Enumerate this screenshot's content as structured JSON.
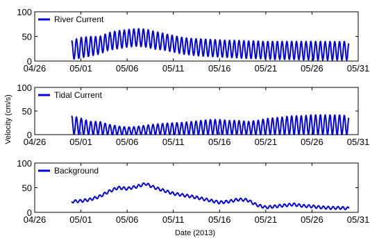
{
  "figure": {
    "ylabel": "Velocity (cm/s)",
    "xlabel": "Date (2013)",
    "line_color": "#0000e0"
  },
  "chart_data": [
    {
      "type": "line",
      "legend": "River Current",
      "legend_placement": "top-left",
      "grid": false,
      "xlim": [
        "2013-04-26",
        "2013-05-31"
      ],
      "ylim": [
        0,
        100
      ],
      "x_ticks": [
        "04/26",
        "05/01",
        "05/06",
        "05/11",
        "05/16",
        "05/21",
        "05/26",
        "05/31"
      ],
      "y_ticks": [
        0,
        50,
        100
      ],
      "series": [
        {
          "name": "River Current",
          "x": [
            "2013-04-30",
            "2013-05-01",
            "2013-05-02",
            "2013-05-03",
            "2013-05-04",
            "2013-05-05",
            "2013-05-06",
            "2013-05-07",
            "2013-05-08",
            "2013-05-09",
            "2013-05-10",
            "2013-05-11",
            "2013-05-12",
            "2013-05-13",
            "2013-05-14",
            "2013-05-15",
            "2013-05-16",
            "2013-05-17",
            "2013-05-18",
            "2013-05-19",
            "2013-05-20",
            "2013-05-21",
            "2013-05-22",
            "2013-05-23",
            "2013-05-24",
            "2013-05-25",
            "2013-05-26",
            "2013-05-27",
            "2013-05-28",
            "2013-05-29",
            "2013-05-30"
          ],
          "upper": [
            42,
            48,
            50,
            50,
            58,
            62,
            64,
            66,
            65,
            60,
            56,
            52,
            48,
            46,
            45,
            44,
            43,
            42,
            42,
            41,
            41,
            40,
            40,
            40,
            40,
            40,
            40,
            40,
            40,
            40,
            40
          ],
          "lower": [
            3,
            6,
            10,
            14,
            22,
            25,
            28,
            30,
            28,
            24,
            22,
            18,
            14,
            12,
            10,
            9,
            8,
            7,
            6,
            5,
            5,
            4,
            3,
            3,
            3,
            2,
            2,
            2,
            2,
            2,
            2
          ]
        }
      ]
    },
    {
      "type": "line",
      "legend": "Tidal Current",
      "legend_placement": "top-left",
      "grid": false,
      "xlim": [
        "2013-04-26",
        "2013-05-31"
      ],
      "ylim": [
        0,
        100
      ],
      "x_ticks": [
        "04/26",
        "05/01",
        "05/06",
        "05/11",
        "05/16",
        "05/21",
        "05/26",
        "05/31"
      ],
      "y_ticks": [
        0,
        50,
        100
      ],
      "series": [
        {
          "name": "Tidal Current",
          "x": [
            "2013-04-30",
            "2013-05-01",
            "2013-05-02",
            "2013-05-03",
            "2013-05-04",
            "2013-05-05",
            "2013-05-06",
            "2013-05-07",
            "2013-05-08",
            "2013-05-09",
            "2013-05-10",
            "2013-05-11",
            "2013-05-12",
            "2013-05-13",
            "2013-05-14",
            "2013-05-15",
            "2013-05-16",
            "2013-05-17",
            "2013-05-18",
            "2013-05-19",
            "2013-05-20",
            "2013-05-21",
            "2013-05-22",
            "2013-05-23",
            "2013-05-24",
            "2013-05-25",
            "2013-05-26",
            "2013-05-27",
            "2013-05-28",
            "2013-05-29",
            "2013-05-30"
          ],
          "upper": [
            40,
            35,
            28,
            28,
            22,
            18,
            16,
            17,
            20,
            22,
            24,
            25,
            26,
            28,
            30,
            32,
            32,
            30,
            30,
            28,
            30,
            34,
            36,
            38,
            40,
            40,
            42,
            42,
            42,
            42,
            40
          ],
          "lower": [
            0,
            0,
            0,
            0,
            0,
            0,
            0,
            0,
            0,
            0,
            0,
            0,
            0,
            0,
            0,
            0,
            0,
            0,
            0,
            0,
            0,
            0,
            0,
            0,
            0,
            0,
            0,
            0,
            0,
            0,
            0
          ]
        }
      ]
    },
    {
      "type": "line",
      "legend": "Background",
      "legend_placement": "top-left",
      "grid": false,
      "xlim": [
        "2013-04-26",
        "2013-05-31"
      ],
      "ylim": [
        0,
        100
      ],
      "x_ticks": [
        "04/26",
        "05/01",
        "05/06",
        "05/11",
        "05/16",
        "05/21",
        "05/26",
        "05/31"
      ],
      "y_ticks": [
        0,
        50,
        100
      ],
      "series": [
        {
          "name": "Background",
          "x": [
            "2013-04-30",
            "2013-05-01",
            "2013-05-02",
            "2013-05-03",
            "2013-05-04",
            "2013-05-05",
            "2013-05-06",
            "2013-05-07",
            "2013-05-08",
            "2013-05-09",
            "2013-05-10",
            "2013-05-11",
            "2013-05-12",
            "2013-05-13",
            "2013-05-14",
            "2013-05-15",
            "2013-05-16",
            "2013-05-17",
            "2013-05-18",
            "2013-05-19",
            "2013-05-20",
            "2013-05-21",
            "2013-05-22",
            "2013-05-23",
            "2013-05-24",
            "2013-05-25",
            "2013-05-26",
            "2013-05-27",
            "2013-05-28",
            "2013-05-29",
            "2013-05-30"
          ],
          "values": [
            22,
            23,
            26,
            32,
            42,
            50,
            48,
            52,
            58,
            50,
            44,
            38,
            35,
            32,
            28,
            24,
            20,
            22,
            26,
            25,
            15,
            10,
            12,
            14,
            16,
            13,
            12,
            10,
            9,
            9,
            8
          ],
          "ripple": 3
        }
      ]
    }
  ]
}
